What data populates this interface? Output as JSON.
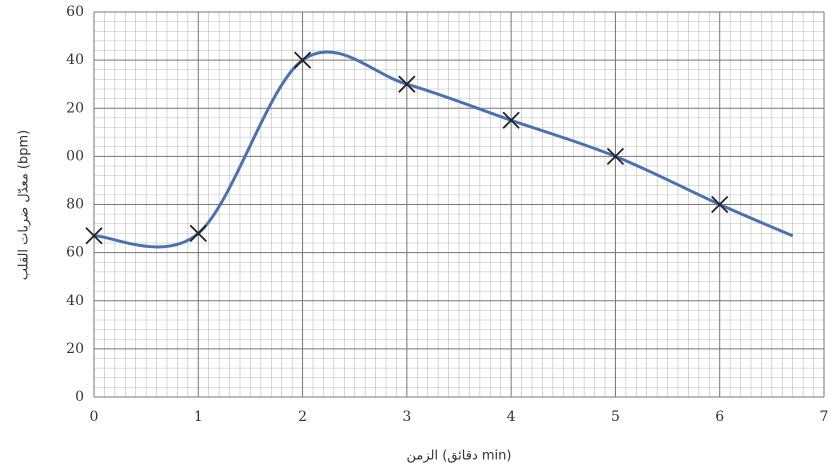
{
  "chart_data": {
    "type": "line",
    "x_label": "الزمن (دقائق min)",
    "y_label": "معدّل ضربات القلب (bpm)",
    "x": [
      0,
      1,
      2,
      3,
      4,
      5,
      6,
      6.7
    ],
    "series": [
      {
        "color": "#4a72b0",
        "marker": "none",
        "values": [
          67,
          68,
          140,
          130,
          115,
          100,
          80,
          67
        ]
      },
      {
        "color": "#222222",
        "marker": "x",
        "values": [
          67,
          68,
          140,
          130,
          115,
          100,
          80,
          null
        ]
      }
    ],
    "xlim": [
      0,
      7
    ],
    "xticks": [
      0,
      1,
      2,
      3,
      4,
      5,
      6,
      7
    ],
    "ylim": [
      0,
      160
    ],
    "yticks": [
      0,
      20,
      40,
      60,
      80,
      {
        "value": 100,
        "label": "00"
      },
      {
        "value": 120,
        "label": "20"
      },
      {
        "value": 140,
        "label": "40"
      },
      {
        "value": 160,
        "label": "60"
      }
    ],
    "grid": true
  }
}
